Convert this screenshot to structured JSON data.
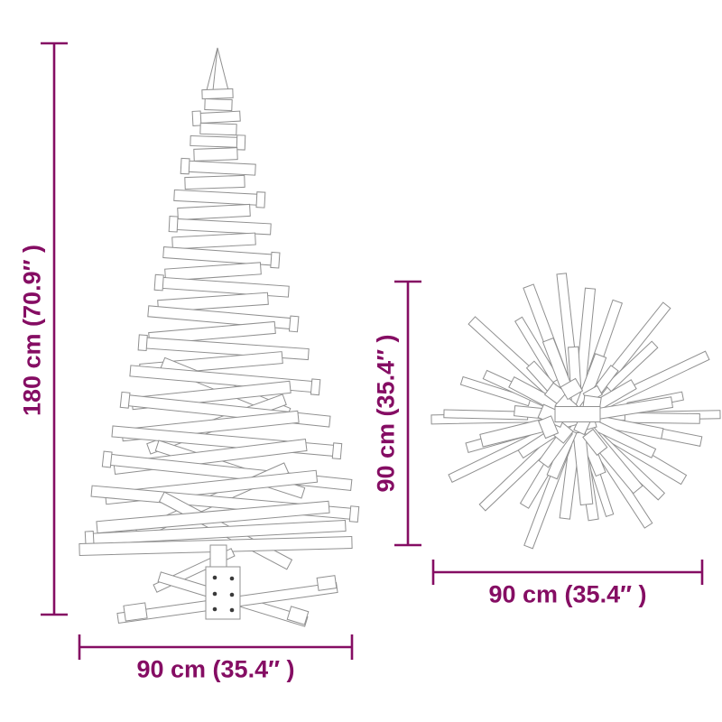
{
  "diagram_title": "wooden-christmas-tree-dimension-diagram",
  "accent_color": "#850d63",
  "outline_color": "#909090",
  "screw_color": "#3a3a3a",
  "side_view": {
    "name": "tree-side-view",
    "height_label": "180 cm (70.9″ )",
    "width_label": "90 cm (35.4″ )"
  },
  "top_view": {
    "name": "tree-top-view",
    "height_label": "90 cm (35.4″ )",
    "width_label": "90 cm (35.4″ )"
  }
}
